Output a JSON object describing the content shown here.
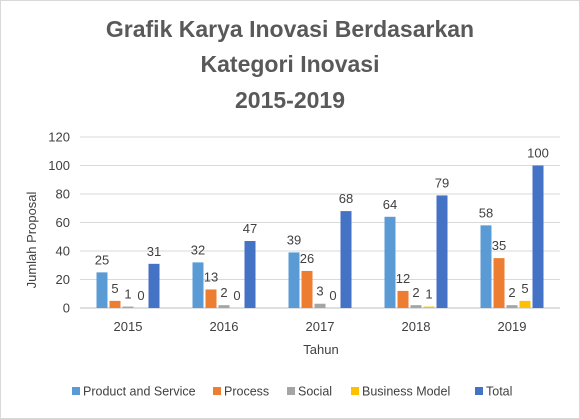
{
  "chart_data": {
    "type": "bar",
    "title_lines": [
      "Grafik Karya Inovasi Berdasarkan",
      "Kategori Inovasi",
      "2015-2019"
    ],
    "xlabel": "Tahun",
    "ylabel": "Jumlah Proposal",
    "ylim": [
      0,
      120
    ],
    "yticks": [
      "0",
      "20",
      "40",
      "60",
      "80",
      "100",
      "120"
    ],
    "categories": [
      "2015",
      "2016",
      "2017",
      "2018",
      "2019"
    ],
    "series": [
      {
        "name": "Product and Service",
        "color": "#5B9BD5",
        "values": [
          25,
          32,
          39,
          64,
          58
        ]
      },
      {
        "name": "Process",
        "color": "#ED7D31",
        "values": [
          5,
          13,
          26,
          12,
          35
        ]
      },
      {
        "name": "Social",
        "color": "#A5A5A5",
        "values": [
          1,
          2,
          3,
          2,
          2
        ]
      },
      {
        "name": "Business Model",
        "color": "#FFC000",
        "values": [
          0,
          0,
          0,
          1,
          5
        ]
      },
      {
        "name": "Total",
        "color": "#4472C4",
        "values": [
          31,
          47,
          68,
          79,
          100
        ]
      }
    ],
    "grid": true,
    "legend": "bottom"
  }
}
